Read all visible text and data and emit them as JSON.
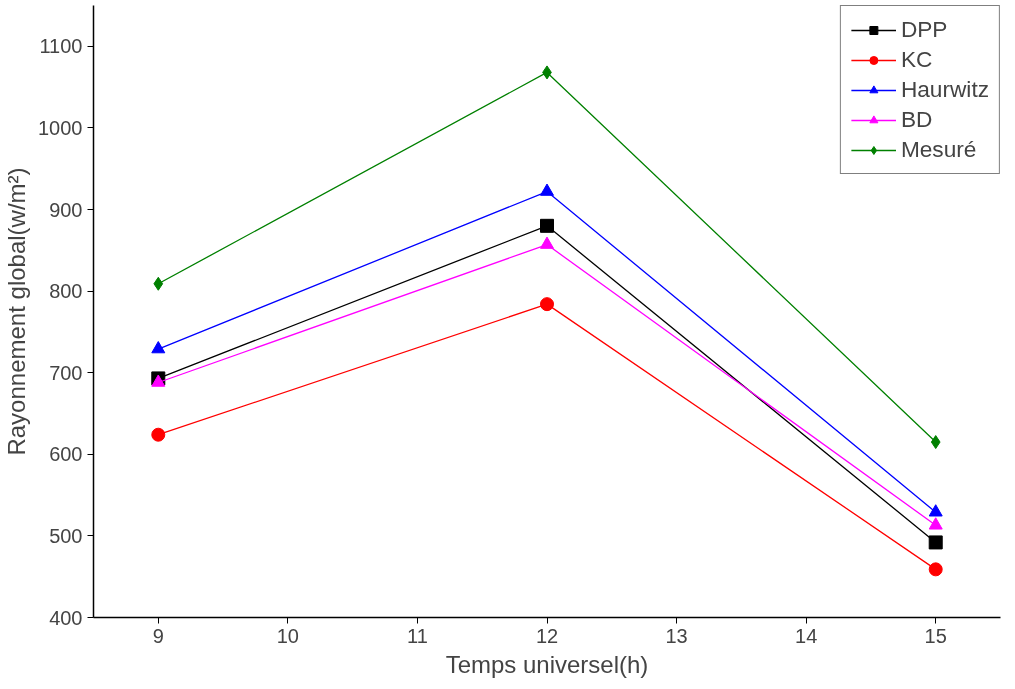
{
  "chart_data": {
    "type": "line",
    "xlabel": "Temps universel(h)",
    "ylabel": "Rayonnement global(w/m²)",
    "x": [
      9,
      12,
      15
    ],
    "series": [
      {
        "name": "DPP",
        "color": "#000000",
        "marker": "square",
        "values": [
          693,
          880,
          492
        ]
      },
      {
        "name": "KC",
        "color": "#ff0000",
        "marker": "circle",
        "values": [
          624,
          784,
          459
        ]
      },
      {
        "name": "Haurwitz",
        "color": "#0000ff",
        "marker": "triangle",
        "values": [
          729,
          922,
          529
        ]
      },
      {
        "name": "BD",
        "color": "#ff00ff",
        "marker": "triangle",
        "values": [
          688,
          857,
          513
        ]
      },
      {
        "name": "Mesuré",
        "color": "#008000",
        "marker": "diamond",
        "values": [
          809,
          1068,
          615
        ]
      }
    ],
    "xlim": [
      8.5,
      15.5
    ],
    "xticks": [
      9,
      10,
      11,
      12,
      13,
      14,
      15
    ],
    "ylim": [
      400,
      1150
    ],
    "yticks": [
      400,
      500,
      600,
      700,
      800,
      900,
      1000,
      1100
    ],
    "grid": false,
    "legend": "top right"
  }
}
